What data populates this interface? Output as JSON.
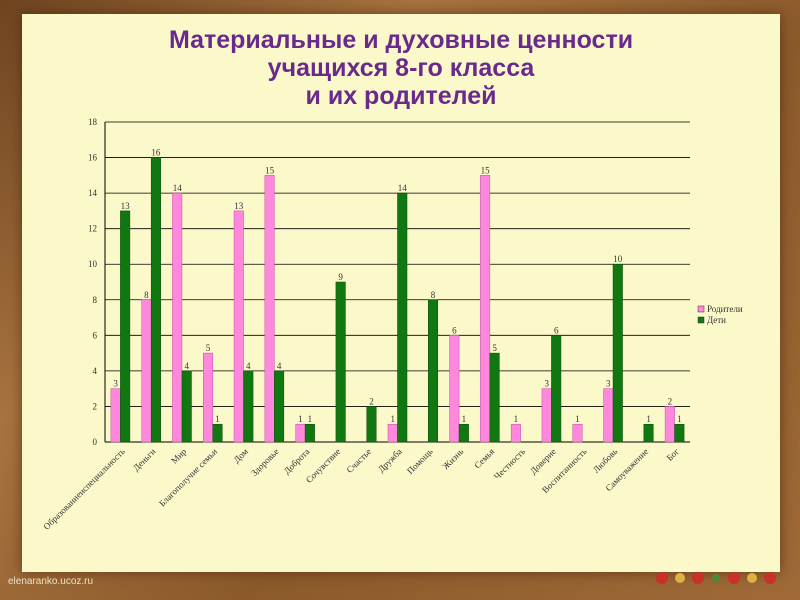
{
  "slide": {
    "title_lines": [
      "Материальные и духовные ценности",
      "учащихся 8-го класса",
      "и их родителей"
    ],
    "credit": "elenaranko.ucoz.ru"
  },
  "colors": {
    "parents": "#ff88dd",
    "children": "#117711",
    "title": "#6a2a8c",
    "grid": "#000000"
  },
  "chart_data": {
    "type": "bar",
    "title": "Материальные и духовные ценности учащихся 8-го класса и их родителей",
    "categories": [
      "Образованиеиспециальность",
      "Деньги",
      "Мир",
      "Благополучие семьи",
      "Дом",
      "Здоровье",
      "Доброта",
      "Сочувствие",
      "Счастье",
      "Дружба",
      "Помощь",
      "Жизнь",
      "Семья",
      "Честность",
      "Доверие",
      "Воспитанность",
      "Любовь",
      "Самоуважение",
      "Бог"
    ],
    "series": [
      {
        "name": "Родители",
        "values": [
          3,
          8,
          14,
          5,
          13,
          15,
          1,
          0,
          0,
          1,
          0,
          6,
          15,
          1,
          3,
          1,
          3,
          0,
          2
        ]
      },
      {
        "name": "Дети",
        "values": [
          13,
          16,
          4,
          1,
          4,
          4,
          1,
          9,
          2,
          14,
          8,
          1,
          5,
          0,
          6,
          0,
          10,
          1,
          1
        ]
      }
    ],
    "ylim": [
      0,
      18
    ],
    "yticks": [
      0,
      2,
      4,
      6,
      8,
      10,
      12,
      14,
      16,
      18
    ],
    "grid": true,
    "legend": "right"
  }
}
